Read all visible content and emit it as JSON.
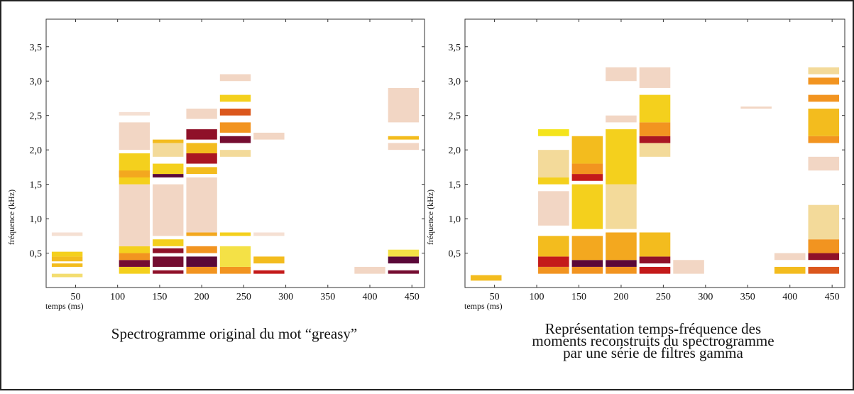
{
  "chart_data": [
    {
      "type": "heatmap",
      "title": [
        "Spectrogramme original du mot “greasy”"
      ],
      "xlabel": "temps (ms)",
      "ylabel": "fréquence (kHz)",
      "xlim": [
        15,
        465
      ],
      "ylim": [
        0,
        3.9
      ],
      "xticks": [
        50,
        100,
        150,
        200,
        250,
        300,
        350,
        400,
        450
      ],
      "yticks": [
        {
          "value": 0.5,
          "label": "0,5"
        },
        {
          "value": 1.0,
          "label": "1,0"
        },
        {
          "value": 1.5,
          "label": "1,5"
        },
        {
          "value": 2.0,
          "label": "2,0"
        },
        {
          "value": 2.5,
          "label": "2,5"
        },
        {
          "value": 3.0,
          "label": "3,0"
        },
        {
          "value": 3.5,
          "label": "3,5"
        }
      ],
      "colormap": [
        "#ffffff",
        "#f2d6c4",
        "#f4e41c",
        "#f29420",
        "#c41a1a",
        "#5a0838"
      ],
      "columns": [
        {
          "t": [
            20,
            60
          ],
          "cells": [
            [
              0.15,
              0.2,
              0.3
            ],
            [
              0.3,
              0.35,
              0.5
            ],
            [
              0.38,
              0.45,
              0.5
            ],
            [
              0.45,
              0.52,
              0.45
            ],
            [
              0.75,
              0.8,
              0.15
            ]
          ]
        },
        {
          "t": [
            100,
            140
          ],
          "cells": [
            [
              0.2,
              0.3,
              0.45
            ],
            [
              0.3,
              0.4,
              0.95
            ],
            [
              0.4,
              0.5,
              0.6
            ],
            [
              0.5,
              0.6,
              0.45
            ],
            [
              0.6,
              1.5,
              0.2
            ],
            [
              1.5,
              1.95,
              0.45
            ],
            [
              1.6,
              1.7,
              0.55
            ],
            [
              2.0,
              2.4,
              0.2
            ],
            [
              2.5,
              2.55,
              0.15
            ]
          ]
        },
        {
          "t": [
            140,
            180
          ],
          "cells": [
            [
              0.2,
              0.25,
              0.9
            ],
            [
              0.3,
              0.45,
              0.95
            ],
            [
              0.5,
              0.57,
              0.9
            ],
            [
              0.6,
              0.7,
              0.45
            ],
            [
              0.75,
              1.5,
              0.2
            ],
            [
              1.6,
              1.65,
              1.0
            ],
            [
              1.65,
              1.8,
              0.45
            ],
            [
              1.9,
              2.1,
              0.25
            ],
            [
              2.1,
              2.15,
              0.5
            ]
          ]
        },
        {
          "t": [
            180,
            220
          ],
          "cells": [
            [
              0.2,
              0.3,
              0.6
            ],
            [
              0.3,
              0.45,
              1.0
            ],
            [
              0.5,
              0.6,
              0.6
            ],
            [
              0.75,
              0.8,
              0.55
            ],
            [
              0.8,
              1.6,
              0.2
            ],
            [
              1.65,
              1.75,
              0.5
            ],
            [
              1.8,
              1.95,
              0.85
            ],
            [
              1.95,
              2.1,
              0.5
            ],
            [
              2.15,
              2.3,
              0.9
            ],
            [
              2.45,
              2.6,
              0.2
            ]
          ]
        },
        {
          "t": [
            220,
            260
          ],
          "cells": [
            [
              0.2,
              0.3,
              0.6
            ],
            [
              0.3,
              0.6,
              0.35
            ],
            [
              0.75,
              0.8,
              0.45
            ],
            [
              1.9,
              2.0,
              0.25
            ],
            [
              2.1,
              2.2,
              0.95
            ],
            [
              2.25,
              2.4,
              0.6
            ],
            [
              2.5,
              2.6,
              0.7
            ],
            [
              2.7,
              2.8,
              0.45
            ],
            [
              3.0,
              3.1,
              0.2
            ]
          ]
        },
        {
          "t": [
            260,
            300
          ],
          "cells": [
            [
              0.2,
              0.25,
              0.8
            ],
            [
              0.35,
              0.45,
              0.5
            ],
            [
              0.75,
              0.8,
              0.15
            ],
            [
              2.15,
              2.25,
              0.2
            ]
          ]
        },
        {
          "t": [
            380,
            420
          ],
          "cells": [
            [
              0.2,
              0.3,
              0.2
            ]
          ]
        },
        {
          "t": [
            420,
            460
          ],
          "cells": [
            [
              0.2,
              0.25,
              0.95
            ],
            [
              0.35,
              0.45,
              1.0
            ],
            [
              0.45,
              0.55,
              0.35
            ],
            [
              2.0,
              2.1,
              0.2
            ],
            [
              2.15,
              2.2,
              0.5
            ],
            [
              2.4,
              2.9,
              0.2
            ]
          ]
        }
      ]
    },
    {
      "type": "heatmap",
      "title": [
        "Représentation temps-fréquence des",
        "moments reconstruits du spectrogramme",
        "par une série de filtres gamma"
      ],
      "xlabel": "temps (ms)",
      "ylabel": "fréquence (kHz)",
      "xlim": [
        15,
        465
      ],
      "ylim": [
        0,
        3.9
      ],
      "xticks": [
        50,
        100,
        150,
        200,
        250,
        300,
        350,
        400,
        450
      ],
      "yticks": [
        {
          "value": 0.5,
          "label": "0,5"
        },
        {
          "value": 1.0,
          "label": "1,0"
        },
        {
          "value": 1.5,
          "label": "1,5"
        },
        {
          "value": 2.0,
          "label": "2,0"
        },
        {
          "value": 2.5,
          "label": "2,5"
        },
        {
          "value": 3.0,
          "label": "3,0"
        },
        {
          "value": 3.5,
          "label": "3,5"
        }
      ],
      "colormap": [
        "#ffffff",
        "#f2d6c4",
        "#f4e41c",
        "#f29420",
        "#c41a1a",
        "#5a0838"
      ],
      "columns": [
        {
          "t": [
            20,
            60
          ],
          "cells": [
            [
              0.1,
              0.18,
              0.5
            ]
          ]
        },
        {
          "t": [
            100,
            140
          ],
          "cells": [
            [
              0.2,
              0.3,
              0.6
            ],
            [
              0.3,
              0.45,
              0.8
            ],
            [
              0.45,
              0.75,
              0.5
            ],
            [
              0.9,
              1.4,
              0.2
            ],
            [
              1.5,
              1.6,
              0.45
            ],
            [
              1.6,
              2.0,
              0.25
            ],
            [
              2.2,
              2.3,
              0.4
            ]
          ]
        },
        {
          "t": [
            140,
            180
          ],
          "cells": [
            [
              0.2,
              0.3,
              0.6
            ],
            [
              0.3,
              0.4,
              1.0
            ],
            [
              0.4,
              0.75,
              0.55
            ],
            [
              0.85,
              1.5,
              0.45
            ],
            [
              1.55,
              1.65,
              0.8
            ],
            [
              1.65,
              1.8,
              0.6
            ],
            [
              1.8,
              2.2,
              0.5
            ]
          ]
        },
        {
          "t": [
            180,
            220
          ],
          "cells": [
            [
              0.2,
              0.3,
              0.6
            ],
            [
              0.3,
              0.4,
              1.0
            ],
            [
              0.4,
              0.8,
              0.55
            ],
            [
              0.85,
              1.5,
              0.25
            ],
            [
              1.5,
              1.95,
              0.45
            ],
            [
              1.95,
              2.3,
              0.45
            ],
            [
              2.4,
              2.5,
              0.2
            ],
            [
              3.0,
              3.2,
              0.2
            ]
          ]
        },
        {
          "t": [
            220,
            260
          ],
          "cells": [
            [
              0.2,
              0.3,
              0.8
            ],
            [
              0.35,
              0.45,
              0.9
            ],
            [
              0.45,
              0.8,
              0.5
            ],
            [
              1.9,
              2.1,
              0.25
            ],
            [
              2.1,
              2.2,
              0.85
            ],
            [
              2.2,
              2.4,
              0.6
            ],
            [
              2.4,
              2.8,
              0.45
            ],
            [
              2.9,
              3.2,
              0.2
            ]
          ]
        },
        {
          "t": [
            260,
            300
          ],
          "cells": [
            [
              0.2,
              0.4,
              0.2
            ]
          ]
        },
        {
          "t": [
            340,
            380
          ],
          "cells": [
            [
              2.6,
              2.63,
              0.2
            ]
          ]
        },
        {
          "t": [
            380,
            420
          ],
          "cells": [
            [
              0.2,
              0.3,
              0.5
            ],
            [
              0.4,
              0.5,
              0.2
            ]
          ]
        },
        {
          "t": [
            420,
            460
          ],
          "cells": [
            [
              0.2,
              0.3,
              0.7
            ],
            [
              0.4,
              0.5,
              0.9
            ],
            [
              0.5,
              0.7,
              0.6
            ],
            [
              0.7,
              1.2,
              0.25
            ],
            [
              1.7,
              1.9,
              0.2
            ],
            [
              2.1,
              2.2,
              0.6
            ],
            [
              2.2,
              2.6,
              0.5
            ],
            [
              2.7,
              2.8,
              0.6
            ],
            [
              2.95,
              3.05,
              0.6
            ],
            [
              3.1,
              3.2,
              0.25
            ]
          ]
        }
      ]
    }
  ]
}
